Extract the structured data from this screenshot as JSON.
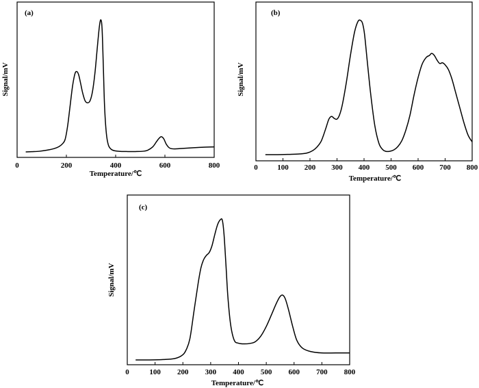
{
  "chart_data": [
    {
      "type": "line",
      "panel_label": "(a)",
      "xlabel": "Temperature/℃",
      "ylabel": "Signal/mV",
      "xlim": [
        0,
        800
      ],
      "ylim": [
        0,
        100
      ],
      "xticks": [
        "0",
        "200",
        "400",
        "600",
        "800"
      ],
      "xtick_values": [
        0,
        200,
        400,
        600,
        800
      ],
      "series": [
        {
          "x": [
            35,
            60,
            90,
            120,
            150,
            170,
            185,
            195,
            205,
            215,
            225,
            235,
            243,
            250,
            258,
            266,
            276,
            286,
            296,
            306,
            316,
            326,
            334,
            340,
            345,
            350,
            355,
            362,
            370,
            380,
            395,
            420,
            450,
            480,
            510,
            530,
            550,
            565,
            575,
            585,
            595,
            605,
            615,
            625,
            640,
            660,
            700,
            750,
            800
          ],
          "y": [
            0.5,
            0.7,
            1.0,
            1.8,
            3.0,
            4.5,
            6.8,
            10.0,
            20.0,
            35.0,
            50.0,
            59.5,
            61.0,
            58.5,
            52.0,
            45.0,
            39.0,
            37.5,
            39.0,
            46.0,
            60.0,
            80.0,
            95.0,
            100.0,
            93.0,
            65.0,
            35.0,
            15.0,
            6.0,
            2.8,
            1.4,
            0.9,
            0.8,
            0.8,
            1.0,
            1.8,
            4.2,
            8.0,
            10.5,
            12.0,
            10.5,
            6.5,
            4.0,
            3.0,
            2.8,
            3.0,
            3.5,
            4.0,
            4.3
          ]
        }
      ]
    },
    {
      "type": "line",
      "panel_label": "(b)",
      "xlabel": "Temperature/℃",
      "ylabel": "Signal/mV",
      "xlim": [
        0,
        800
      ],
      "ylim": [
        0,
        100
      ],
      "xticks": [
        "0",
        "100",
        "200",
        "300",
        "400",
        "500",
        "600",
        "700",
        "800"
      ],
      "xtick_values": [
        0,
        100,
        200,
        300,
        400,
        500,
        600,
        700,
        800
      ],
      "series": [
        {
          "x": [
            35,
            80,
            120,
            160,
            190,
            210,
            225,
            240,
            250,
            260,
            270,
            280,
            290,
            300,
            310,
            320,
            335,
            350,
            365,
            378,
            388,
            395,
            402,
            412,
            425,
            440,
            455,
            468,
            480,
            495,
            510,
            525,
            540,
            555,
            570,
            585,
            600,
            615,
            630,
            642,
            650,
            660,
            670,
            680,
            690,
            700,
            712,
            725,
            740,
            755,
            770,
            785,
            800
          ],
          "y": [
            0.5,
            0.5,
            0.7,
            1.0,
            1.8,
            3.5,
            6.0,
            10.0,
            15.0,
            21.0,
            27.0,
            29.0,
            27.5,
            27.0,
            30.5,
            38.0,
            55.0,
            75.0,
            92.0,
            100.0,
            100.5,
            98.0,
            90.0,
            70.0,
            45.0,
            22.0,
            9.0,
            4.5,
            3.0,
            3.0,
            4.0,
            6.5,
            11.0,
            19.0,
            30.0,
            45.0,
            58.0,
            68.0,
            73.0,
            74.5,
            76.0,
            74.5,
            71.0,
            68.5,
            69.0,
            67.5,
            64.0,
            57.0,
            46.0,
            35.0,
            24.0,
            15.0,
            10.0
          ]
        }
      ]
    },
    {
      "type": "line",
      "panel_label": "(c)",
      "xlabel": "Temperature/℃",
      "ylabel": "Signal/mV",
      "xlim": [
        0,
        800
      ],
      "ylim": [
        0,
        100
      ],
      "xticks": [
        "0",
        "100",
        "200",
        "300",
        "400",
        "500",
        "600",
        "700",
        "800"
      ],
      "xtick_values": [
        0,
        100,
        200,
        300,
        400,
        500,
        600,
        700,
        800
      ],
      "series": [
        {
          "x": [
            30,
            80,
            130,
            170,
            195,
            210,
            225,
            240,
            255,
            265,
            275,
            285,
            295,
            305,
            315,
            325,
            335,
            342,
            348,
            355,
            362,
            372,
            385,
            400,
            420,
            440,
            460,
            480,
            500,
            520,
            535,
            548,
            558,
            568,
            580,
            595,
            610,
            630,
            660,
            700,
            750,
            800
          ],
          "y": [
            0.0,
            0.0,
            0.3,
            1.0,
            3.0,
            6.5,
            15.0,
            35.0,
            55.0,
            66.0,
            72.0,
            75.0,
            77.0,
            82.0,
            90.0,
            97.0,
            100.5,
            100.0,
            90.0,
            68.0,
            45.0,
            25.0,
            14.0,
            12.0,
            11.5,
            11.8,
            13.0,
            17.0,
            24.0,
            33.0,
            40.0,
            45.0,
            46.5,
            44.0,
            36.0,
            24.0,
            14.0,
            8.5,
            6.0,
            5.0,
            5.0,
            5.0
          ]
        }
      ]
    }
  ]
}
